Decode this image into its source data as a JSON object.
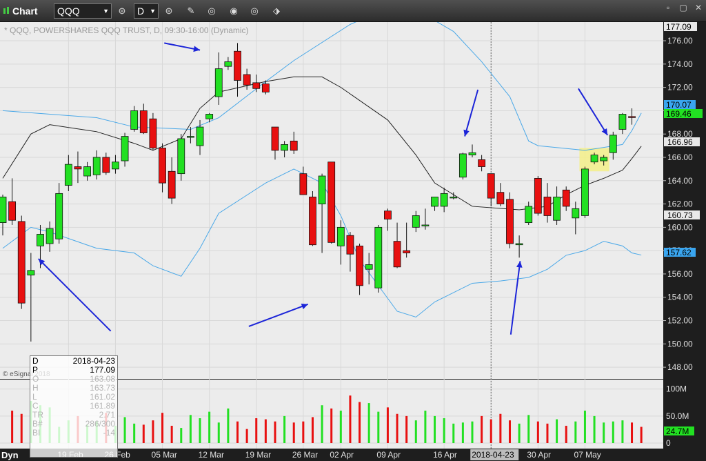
{
  "titlebar": {
    "app_name": "Chart",
    "symbol": "QQQ",
    "interval": "D"
  },
  "chart_title": "* QQQ, POWERSHARES QQQ TRUST, D, 09:30-16:00 (Dynamic)",
  "copyright": "© eSignal 2018",
  "corner_label": "Dyn",
  "axis": {
    "price_ticks": [
      "176.00",
      "174.00",
      "172.00",
      "170.00",
      "168.00",
      "166.00",
      "164.00",
      "162.00",
      "160.00",
      "158.00",
      "156.00",
      "154.00",
      "152.00",
      "150.00",
      "148.00"
    ],
    "volume_ticks": [
      "100M",
      "50.0M",
      "0"
    ],
    "date_ticks": [
      "19 Feb",
      "26 Feb",
      "05 Mar",
      "12 Mar",
      "19 Mar",
      "26 Mar",
      "02 Apr",
      "09 Apr",
      "16 Apr",
      "2018-04-23",
      "30 Apr",
      "07 May"
    ]
  },
  "price_labels": {
    "top": "177.09",
    "upper_band": "170.07",
    "last": "169.46",
    "mid_band": "166.96",
    "lower_label": "160.73",
    "lower_band": "157.62",
    "volume": "24.7M"
  },
  "info_box": {
    "date_label": "D",
    "date_value": "2018-04-23",
    "price_label": "P",
    "price_value": "177.09",
    "rows": [
      {
        "k": "O",
        "v": "163.08"
      },
      {
        "k": "H",
        "v": "163.73"
      },
      {
        "k": "L",
        "v": "161.02"
      },
      {
        "k": "C",
        "v": "161.89"
      },
      {
        "k": "TR",
        "v": "2.71"
      },
      {
        "k": "B#",
        "v": "286/300"
      },
      {
        "k": "BI",
        "v": "-14"
      }
    ]
  },
  "colors": {
    "up": "#22e022",
    "down": "#e81010",
    "band": "#4aa8e8",
    "mid": "#222222",
    "arrow": "#1b24d8",
    "highlight": "#f4f08a"
  },
  "chart_data": {
    "type": "candlestick",
    "title": "* QQQ, POWERSHARES QQQ TRUST, D, 09:30-16:00 (Dynamic)",
    "ylim": [
      147,
      177.6
    ],
    "candles": [
      {
        "o": 160.4,
        "h": 162.8,
        "l": 159.3,
        "c": 162.6
      },
      {
        "o": 162.2,
        "h": 164.2,
        "l": 160.2,
        "c": 160.6
      },
      {
        "o": 160.5,
        "h": 161.0,
        "l": 153.0,
        "c": 153.5
      },
      {
        "o": 155.9,
        "h": 157.8,
        "l": 150.2,
        "c": 156.3
      },
      {
        "o": 158.4,
        "h": 160.2,
        "l": 156.5,
        "c": 159.4
      },
      {
        "o": 158.6,
        "h": 160.5,
        "l": 157.9,
        "c": 159.9
      },
      {
        "o": 159.0,
        "h": 163.8,
        "l": 158.6,
        "c": 162.9
      },
      {
        "o": 163.6,
        "h": 166.2,
        "l": 163.1,
        "c": 165.4
      },
      {
        "o": 165.2,
        "h": 166.5,
        "l": 163.8,
        "c": 165.0
      },
      {
        "o": 164.4,
        "h": 165.6,
        "l": 164.0,
        "c": 165.2
      },
      {
        "o": 164.5,
        "h": 166.6,
        "l": 164.1,
        "c": 166.0
      },
      {
        "o": 166.0,
        "h": 166.4,
        "l": 164.5,
        "c": 164.7
      },
      {
        "o": 165.0,
        "h": 166.2,
        "l": 164.6,
        "c": 165.6
      },
      {
        "o": 165.7,
        "h": 168.1,
        "l": 165.2,
        "c": 167.8
      },
      {
        "o": 168.4,
        "h": 170.4,
        "l": 168.2,
        "c": 170.0
      },
      {
        "o": 170.0,
        "h": 170.6,
        "l": 168.0,
        "c": 168.1
      },
      {
        "o": 169.3,
        "h": 169.8,
        "l": 166.6,
        "c": 166.8
      },
      {
        "o": 166.8,
        "h": 167.2,
        "l": 163.0,
        "c": 163.8
      },
      {
        "o": 164.8,
        "h": 166.0,
        "l": 162.0,
        "c": 162.5
      },
      {
        "o": 164.6,
        "h": 168.0,
        "l": 164.0,
        "c": 167.6
      },
      {
        "o": 167.8,
        "h": 168.6,
        "l": 167.2,
        "c": 167.8
      },
      {
        "o": 167.0,
        "h": 169.2,
        "l": 166.2,
        "c": 168.6
      },
      {
        "o": 169.3,
        "h": 169.8,
        "l": 169.0,
        "c": 169.7
      },
      {
        "o": 171.2,
        "h": 175.0,
        "l": 170.5,
        "c": 173.6
      },
      {
        "o": 173.8,
        "h": 174.6,
        "l": 173.5,
        "c": 174.2
      },
      {
        "o": 175.1,
        "h": 175.8,
        "l": 171.2,
        "c": 172.6
      },
      {
        "o": 173.1,
        "h": 173.6,
        "l": 171.8,
        "c": 172.2
      },
      {
        "o": 172.4,
        "h": 173.1,
        "l": 171.6,
        "c": 171.9
      },
      {
        "o": 172.3,
        "h": 172.6,
        "l": 171.4,
        "c": 171.6
      },
      {
        "o": 168.6,
        "h": 168.6,
        "l": 165.8,
        "c": 166.6
      },
      {
        "o": 166.6,
        "h": 167.4,
        "l": 166.0,
        "c": 167.1
      },
      {
        "o": 167.4,
        "h": 168.2,
        "l": 166.3,
        "c": 166.6
      },
      {
        "o": 164.6,
        "h": 165.2,
        "l": 162.8,
        "c": 162.8
      },
      {
        "o": 162.6,
        "h": 163.1,
        "l": 158.4,
        "c": 158.5
      },
      {
        "o": 162.0,
        "h": 164.6,
        "l": 157.8,
        "c": 164.4
      },
      {
        "o": 165.6,
        "h": 165.6,
        "l": 158.6,
        "c": 158.7
      },
      {
        "o": 158.4,
        "h": 160.6,
        "l": 156.8,
        "c": 160.0
      },
      {
        "o": 159.3,
        "h": 159.6,
        "l": 156.2,
        "c": 157.7
      },
      {
        "o": 158.4,
        "h": 158.6,
        "l": 154.2,
        "c": 155.0
      },
      {
        "o": 156.4,
        "h": 157.8,
        "l": 155.1,
        "c": 156.8
      },
      {
        "o": 154.8,
        "h": 160.2,
        "l": 154.4,
        "c": 160.0
      },
      {
        "o": 161.4,
        "h": 161.6,
        "l": 159.7,
        "c": 160.7
      },
      {
        "o": 158.8,
        "h": 160.4,
        "l": 156.5,
        "c": 156.6
      },
      {
        "o": 158.0,
        "h": 160.4,
        "l": 157.4,
        "c": 157.8
      },
      {
        "o": 160.0,
        "h": 161.4,
        "l": 159.6,
        "c": 161.0
      },
      {
        "o": 160.2,
        "h": 161.6,
        "l": 159.8,
        "c": 160.2
      },
      {
        "o": 161.8,
        "h": 162.6,
        "l": 161.4,
        "c": 162.6
      },
      {
        "o": 161.8,
        "h": 163.4,
        "l": 161.3,
        "c": 162.9
      },
      {
        "o": 162.6,
        "h": 163.0,
        "l": 162.4,
        "c": 162.6
      },
      {
        "o": 164.3,
        "h": 166.4,
        "l": 164.1,
        "c": 166.3
      },
      {
        "o": 166.2,
        "h": 167.1,
        "l": 166.0,
        "c": 166.4
      },
      {
        "o": 165.8,
        "h": 166.2,
        "l": 164.8,
        "c": 165.2
      },
      {
        "o": 164.6,
        "h": 164.6,
        "l": 161.8,
        "c": 162.5
      },
      {
        "o": 163.0,
        "h": 163.8,
        "l": 161.8,
        "c": 162.0
      },
      {
        "o": 162.4,
        "h": 163.0,
        "l": 158.2,
        "c": 158.6
      },
      {
        "o": 158.5,
        "h": 159.3,
        "l": 157.4,
        "c": 158.6
      },
      {
        "o": 160.4,
        "h": 162.2,
        "l": 160.2,
        "c": 161.8
      },
      {
        "o": 164.2,
        "h": 164.4,
        "l": 161.0,
        "c": 161.2
      },
      {
        "o": 162.6,
        "h": 163.8,
        "l": 160.4,
        "c": 161.0
      },
      {
        "o": 160.6,
        "h": 163.5,
        "l": 160.2,
        "c": 162.6
      },
      {
        "o": 163.2,
        "h": 163.5,
        "l": 161.4,
        "c": 161.8
      },
      {
        "o": 160.8,
        "h": 162.2,
        "l": 159.4,
        "c": 161.6
      },
      {
        "o": 161.0,
        "h": 165.2,
        "l": 160.8,
        "c": 165.0
      },
      {
        "o": 165.6,
        "h": 166.4,
        "l": 165.4,
        "c": 166.2
      },
      {
        "o": 165.7,
        "h": 166.2,
        "l": 165.3,
        "c": 166.0
      },
      {
        "o": 166.4,
        "h": 168.2,
        "l": 165.8,
        "c": 167.9
      },
      {
        "o": 168.4,
        "h": 169.8,
        "l": 168.0,
        "c": 169.7
      },
      {
        "o": 169.5,
        "h": 170.2,
        "l": 168.8,
        "c": 169.46
      }
    ],
    "volume": [
      60,
      54,
      78,
      70,
      66,
      30,
      42,
      50,
      34,
      40,
      56,
      32,
      48,
      36,
      34,
      42,
      56,
      32,
      28,
      52,
      46,
      58,
      38,
      64,
      40,
      26,
      46,
      44,
      40,
      50,
      38,
      40,
      48,
      70,
      64,
      60,
      88,
      76,
      74,
      58,
      66,
      54,
      50,
      42,
      60,
      50,
      46,
      36,
      38,
      40,
      50,
      44,
      54,
      42,
      36,
      52,
      40,
      36,
      44,
      32,
      40,
      60,
      50,
      38,
      40,
      42,
      38,
      30
    ],
    "upper_band": [
      [
        0,
        170
      ],
      [
        10,
        169.4
      ],
      [
        14,
        168.6
      ],
      [
        20,
        168.4
      ],
      [
        23,
        169.4
      ],
      [
        28,
        172.5
      ],
      [
        31,
        174.3
      ],
      [
        37,
        177.4
      ],
      [
        41,
        178.8
      ],
      [
        45,
        178.2
      ],
      [
        48,
        176.8
      ],
      [
        51,
        174.2
      ],
      [
        54,
        171.2
      ],
      [
        56,
        167.4
      ],
      [
        57,
        167.0
      ],
      [
        62,
        166.6
      ],
      [
        66,
        167.1
      ],
      [
        67,
        168.3
      ],
      [
        68,
        169.8
      ]
    ],
    "mid_band": [
      [
        0,
        164.2
      ],
      [
        3,
        168.0
      ],
      [
        5,
        168.8
      ],
      [
        10,
        168.2
      ],
      [
        14,
        167.2
      ],
      [
        16,
        166.6
      ],
      [
        19,
        167.6
      ],
      [
        21,
        170.2
      ],
      [
        23,
        171.6
      ],
      [
        28,
        172.5
      ],
      [
        31,
        172.9
      ],
      [
        34,
        172.9
      ],
      [
        36,
        172.0
      ],
      [
        41,
        169.2
      ],
      [
        44,
        166.2
      ],
      [
        46,
        163.8
      ],
      [
        50,
        161.8
      ],
      [
        55,
        161.5
      ],
      [
        58,
        161.8
      ],
      [
        60,
        162.8
      ],
      [
        62,
        163.6
      ],
      [
        64,
        164.2
      ],
      [
        66,
        164.9
      ],
      [
        67,
        165.9
      ],
      [
        68,
        166.96
      ]
    ],
    "lower_band": [
      [
        0,
        158.2
      ],
      [
        3,
        160.0
      ],
      [
        5,
        159.6
      ],
      [
        10,
        158.2
      ],
      [
        14,
        157.8
      ],
      [
        16,
        156.7
      ],
      [
        19,
        155.8
      ],
      [
        21,
        158.2
      ],
      [
        23,
        161.2
      ],
      [
        28,
        163.8
      ],
      [
        31,
        165.0
      ],
      [
        34,
        163.8
      ],
      [
        36,
        161.0
      ],
      [
        38,
        157.2
      ],
      [
        42,
        152.8
      ],
      [
        44,
        152.3
      ],
      [
        46,
        153.6
      ],
      [
        50,
        155.2
      ],
      [
        53,
        155.4
      ],
      [
        56,
        155.7
      ],
      [
        58,
        156.4
      ],
      [
        60,
        157.6
      ],
      [
        62,
        158.0
      ],
      [
        64,
        158.8
      ],
      [
        66,
        158.4
      ],
      [
        67,
        157.8
      ],
      [
        68,
        157.62
      ]
    ],
    "date_ticks": [
      {
        "i": 7,
        "label": "19 Feb"
      },
      {
        "i": 12,
        "label": "26 Feb"
      },
      {
        "i": 17,
        "label": "05 Mar"
      },
      {
        "i": 22,
        "label": "12 Mar"
      },
      {
        "i": 27,
        "label": "19 Mar"
      },
      {
        "i": 32,
        "label": "26 Mar"
      },
      {
        "i": 36,
        "label": "02 Apr"
      },
      {
        "i": 41,
        "label": "09 Apr"
      },
      {
        "i": 47,
        "label": "16 Apr"
      },
      {
        "i": 52,
        "label": "2018-04-23"
      },
      {
        "i": 57,
        "label": "30 Apr"
      },
      {
        "i": 62,
        "label": "07 May"
      }
    ],
    "crosshair_index": 52,
    "highlight_range": [
      62,
      64
    ],
    "arrows": [
      {
        "from": [
          11.5,
          151.1
        ],
        "to": [
          3.8,
          157.3
        ]
      },
      {
        "from": [
          17.2,
          175.8
        ],
        "to": [
          21.0,
          175.2
        ]
      },
      {
        "from": [
          26.2,
          151.5
        ],
        "to": [
          32.5,
          153.4
        ]
      },
      {
        "from": [
          50.6,
          171.8
        ],
        "to": [
          49.2,
          167.8
        ]
      },
      {
        "from": [
          54.1,
          150.8
        ],
        "to": [
          55.1,
          157.1
        ]
      },
      {
        "from": [
          61.3,
          171.9
        ],
        "to": [
          64.4,
          167.9
        ]
      }
    ]
  }
}
